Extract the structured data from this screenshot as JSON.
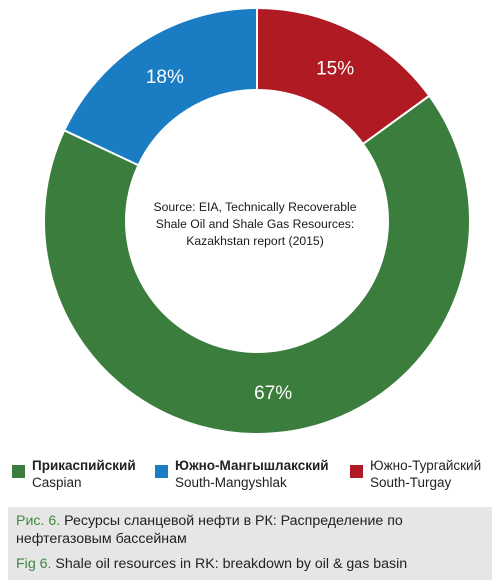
{
  "chart_data": {
    "type": "pie",
    "title": "",
    "donut": true,
    "categories": [
      "Caspian",
      "South-Mangyshlak",
      "South-Turgay"
    ],
    "values": [
      67,
      18,
      15
    ],
    "value_labels": [
      "67%",
      "18%",
      "15%"
    ],
    "colors": [
      "#3a7d3c",
      "#1a7dc4",
      "#b01a22"
    ],
    "center_annotation": "Source: EIA, Technically Recoverable Shale Oil and Shale Gas Resources: Kazakhstan report (2015)",
    "center_annotation_lines": [
      "Source: EIA, Technically Recoverable",
      "Shale Oil and Shale Gas Resources:",
      "Kazakhstan report (2015)"
    ],
    "legend": [
      {
        "ru": "Прикаспийский",
        "en": "Caspian",
        "color": "#3a7d3c",
        "ru_bold": true
      },
      {
        "ru": "Южно-Мангышлакский",
        "en": "South-Mangyshlak",
        "color": "#1a7dc4",
        "ru_bold": true
      },
      {
        "ru": "Южно-Тургайский",
        "en": "South-Turgay",
        "color": "#b01a22",
        "ru_bold": false
      }
    ],
    "legend_placement": "bottom"
  },
  "caption": {
    "ru_prefix": "Рис. 6.",
    "ru_line1": " Ресурсы сланцевой нефти в РК: Распределение по",
    "ru_line2": "нефтегазовым бассейнам",
    "en_prefix": "Fig 6.",
    "en_text": " Shale oil resources in RK: breakdown by oil & gas basin"
  }
}
